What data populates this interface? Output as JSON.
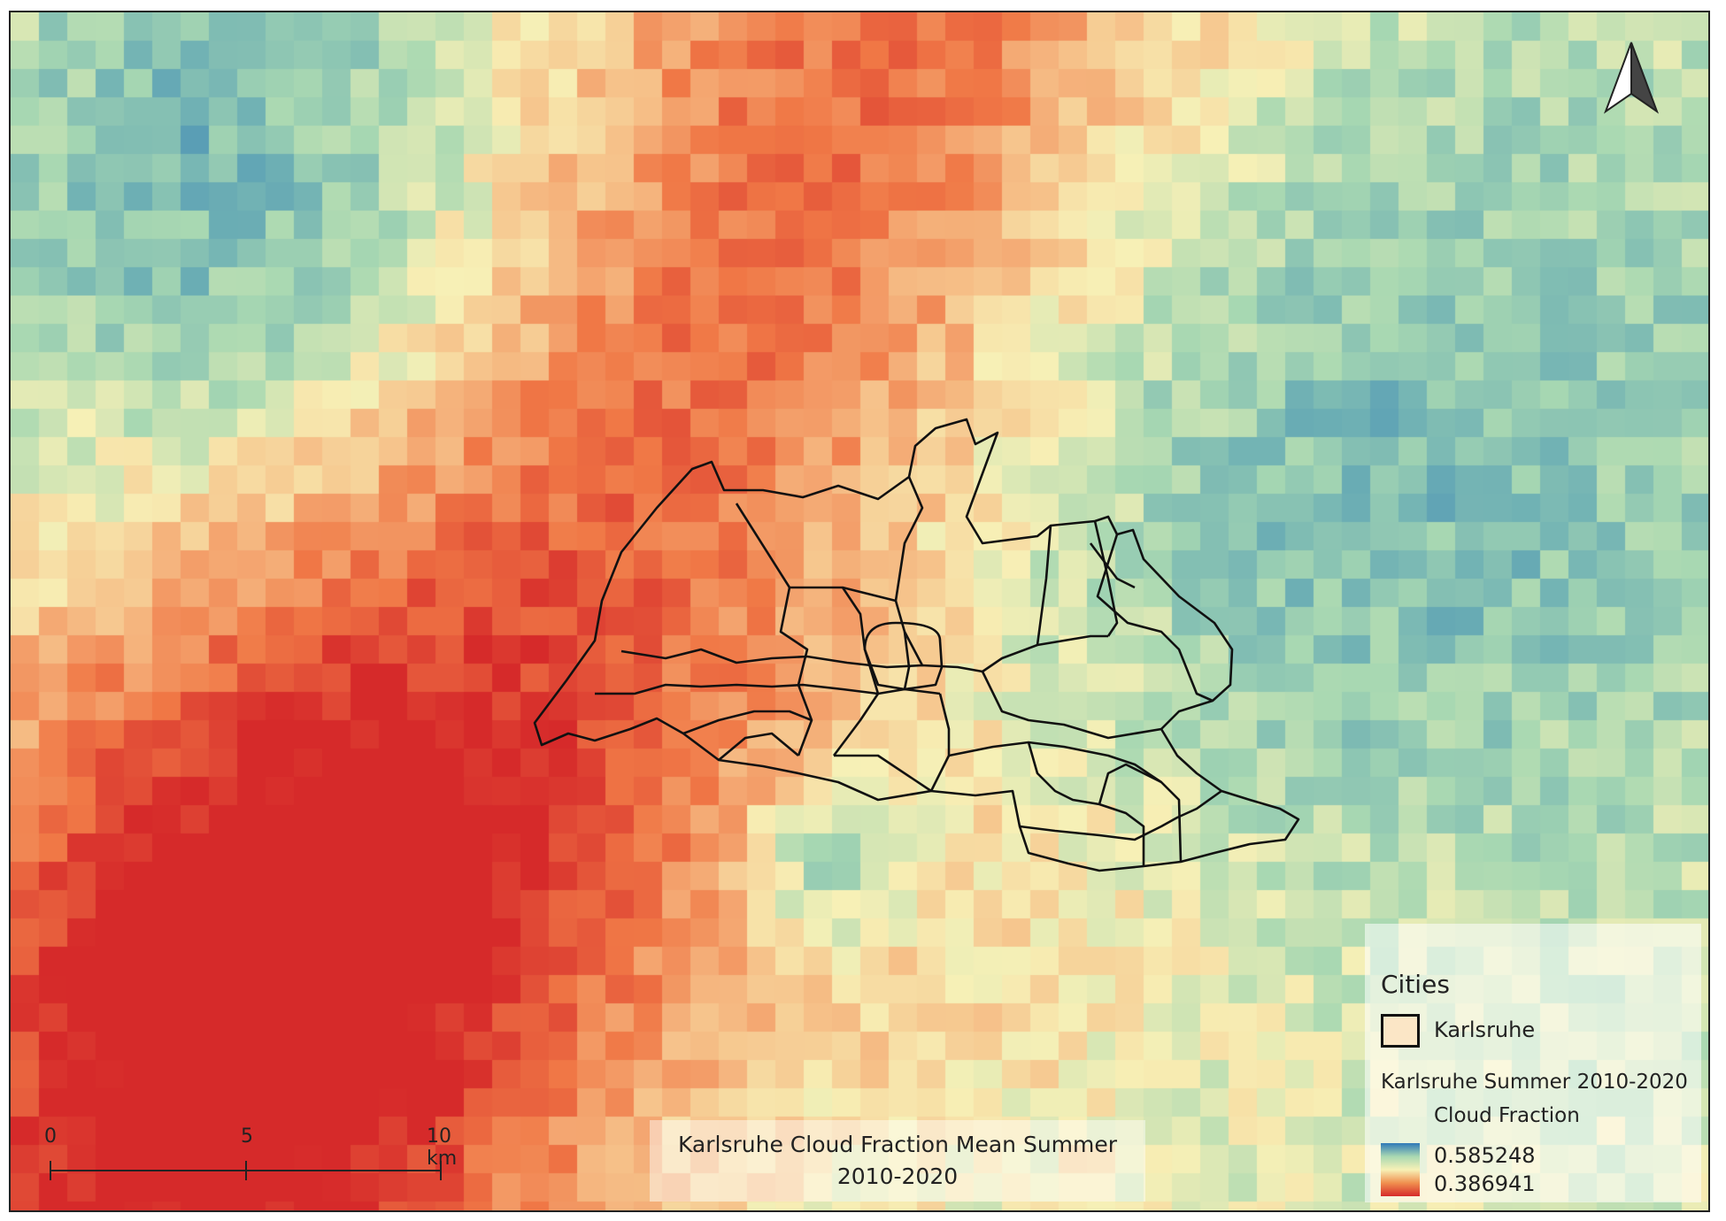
{
  "map": {
    "title_line1": "Karlsruhe Cloud Fraction Mean Summer",
    "title_line2": "2010-2020"
  },
  "legend": {
    "group_title": "Cities",
    "city_label": "Karlsruhe",
    "layer_title": "Karlsruhe Summer 2010-2020",
    "layer_subtitle": "Cloud Fraction",
    "max_value": "0.585248",
    "min_value": "0.386941"
  },
  "scalebar": {
    "labels": [
      "0",
      "5",
      "10 km"
    ]
  },
  "north_arrow": {
    "icon": "north-arrow-icon"
  },
  "colors": {
    "high": "#2f79b8",
    "mid_high": "#a8d8b2",
    "mid": "#f7f1b6",
    "mid_low": "#f0904f",
    "low": "#d62a2a"
  }
}
